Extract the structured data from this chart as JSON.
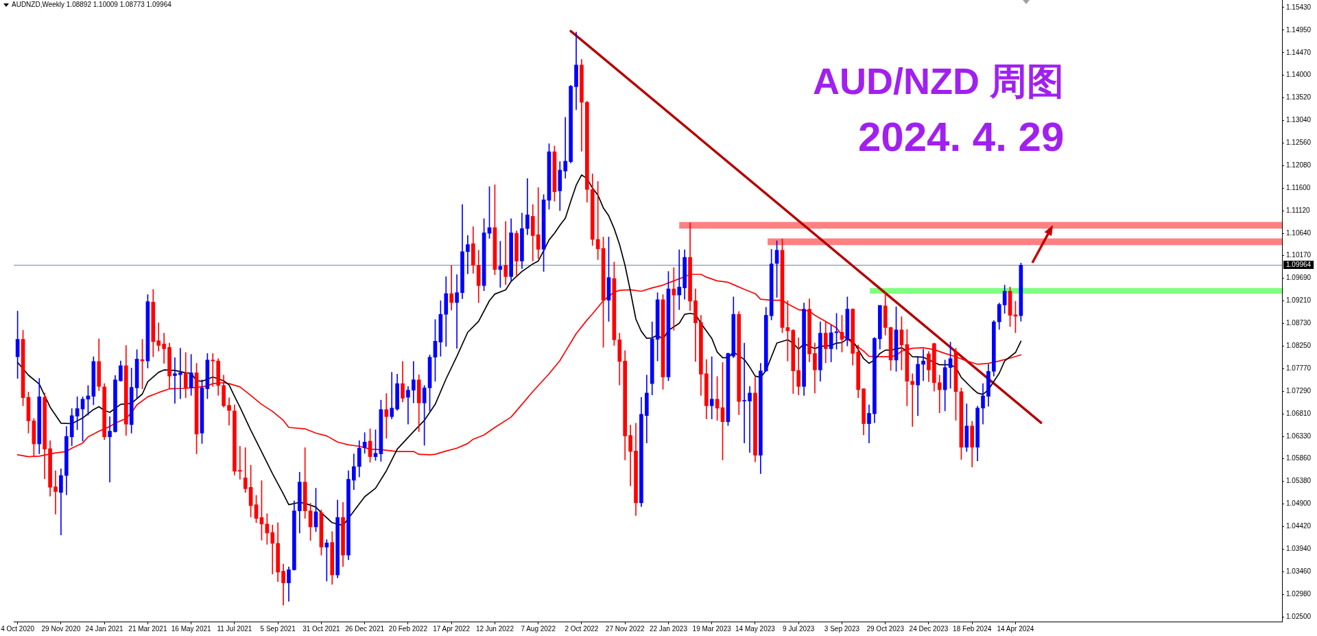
{
  "chart_data": {
    "type": "candlestick",
    "title": "AUD/NZD 周图",
    "subtitle": "2024. 4. 29",
    "annotations": [
      "AUDNZD,Weekly 1.08892 1.10009 1.08773 1.09964"
    ],
    "x": [
      "2020-10-04",
      "2020-10-11",
      "2020-10-18",
      "2020-10-25",
      "2020-11-01",
      "2020-11-08",
      "2020-11-15",
      "2020-11-22",
      "2020-11-29",
      "2020-12-06",
      "2020-12-13",
      "2020-12-20",
      "2020-12-27",
      "2021-01-03",
      "2021-01-10",
      "2021-01-17",
      "2021-01-24",
      "2021-01-31",
      "2021-02-07",
      "2021-02-14",
      "2021-02-21",
      "2021-02-28",
      "2021-03-07",
      "2021-03-14",
      "2021-03-21",
      "2021-03-28",
      "2021-04-04",
      "2021-04-11",
      "2021-04-18",
      "2021-04-25",
      "2021-05-02",
      "2021-05-09",
      "2021-05-16",
      "2021-05-23",
      "2021-05-30",
      "2021-06-06",
      "2021-06-13",
      "2021-06-20",
      "2021-06-27",
      "2021-07-04",
      "2021-07-11",
      "2021-07-18",
      "2021-07-25",
      "2021-08-01",
      "2021-08-08",
      "2021-08-15",
      "2021-08-22",
      "2021-08-29",
      "2021-09-05",
      "2021-09-12",
      "2021-09-19",
      "2021-09-26",
      "2021-10-03",
      "2021-10-10",
      "2021-10-17",
      "2021-10-24",
      "2021-10-31",
      "2021-11-07",
      "2021-11-14",
      "2021-11-21",
      "2021-11-28",
      "2021-12-05",
      "2021-12-12",
      "2021-12-19",
      "2021-12-26",
      "2022-01-02",
      "2022-01-09",
      "2022-01-16",
      "2022-01-23",
      "2022-01-30",
      "2022-02-06",
      "2022-02-13",
      "2022-02-20",
      "2022-02-27",
      "2022-03-06",
      "2022-03-13",
      "2022-03-20",
      "2022-03-27",
      "2022-04-03",
      "2022-04-10",
      "2022-04-17",
      "2022-04-24",
      "2022-05-01",
      "2022-05-08",
      "2022-05-15",
      "2022-05-22",
      "2022-05-29",
      "2022-06-05",
      "2022-06-12",
      "2022-06-19",
      "2022-06-26",
      "2022-07-03",
      "2022-07-10",
      "2022-07-17",
      "2022-07-24",
      "2022-07-31",
      "2022-08-07",
      "2022-08-14",
      "2022-08-21",
      "2022-08-28",
      "2022-09-04",
      "2022-09-11",
      "2022-09-18",
      "2022-09-25",
      "2022-10-02",
      "2022-10-09",
      "2022-10-16",
      "2022-10-23",
      "2022-10-30",
      "2022-11-06",
      "2022-11-13",
      "2022-11-20",
      "2022-11-27",
      "2022-12-04",
      "2022-12-11",
      "2022-12-18",
      "2022-12-25",
      "2023-01-01",
      "2023-01-08",
      "2023-01-15",
      "2023-01-22",
      "2023-01-29",
      "2023-02-05",
      "2023-02-12",
      "2023-02-19",
      "2023-02-26",
      "2023-03-05",
      "2023-03-12",
      "2023-03-19",
      "2023-03-26",
      "2023-04-02",
      "2023-04-09",
      "2023-04-16",
      "2023-04-23",
      "2023-04-30",
      "2023-05-07",
      "2023-05-14",
      "2023-05-21",
      "2023-05-28",
      "2023-06-04",
      "2023-06-11",
      "2023-06-18",
      "2023-06-25",
      "2023-07-02",
      "2023-07-09",
      "2023-07-16",
      "2023-07-23",
      "2023-07-30",
      "2023-08-06",
      "2023-08-13",
      "2023-08-20",
      "2023-08-27",
      "2023-09-03",
      "2023-09-10",
      "2023-09-17",
      "2023-09-24",
      "2023-10-01",
      "2023-10-08",
      "2023-10-15",
      "2023-10-22",
      "2023-10-29",
      "2023-11-05",
      "2023-11-12",
      "2023-11-19",
      "2023-11-26",
      "2023-12-03",
      "2023-12-10",
      "2023-12-17",
      "2023-12-24",
      "2023-12-31",
      "2024-01-07",
      "2024-01-14",
      "2024-01-21",
      "2024-01-28",
      "2024-02-04",
      "2024-02-11",
      "2024-02-18",
      "2024-02-25",
      "2024-03-03",
      "2024-03-10",
      "2024-03-17",
      "2024-03-24",
      "2024-03-31",
      "2024-04-07",
      "2024-04-14",
      "2024-04-21"
    ],
    "ohlc": [
      [
        1.0802,
        1.0899,
        1.0756,
        1.0839
      ],
      [
        1.0839,
        1.0858,
        1.0698,
        1.0715
      ],
      [
        1.0716,
        1.0727,
        1.064,
        1.0666
      ],
      [
        1.0666,
        1.0671,
        1.0591,
        1.0617
      ],
      [
        1.0617,
        1.0756,
        1.0596,
        1.0717
      ],
      [
        1.0716,
        1.0725,
        1.0543,
        1.0606
      ],
      [
        1.0607,
        1.0624,
        1.0506,
        1.0525
      ],
      [
        1.0526,
        1.056,
        1.0468,
        1.0516
      ],
      [
        1.0514,
        1.0564,
        1.0424,
        1.055
      ],
      [
        1.055,
        1.0654,
        1.0509,
        1.0633
      ],
      [
        1.0632,
        1.0692,
        1.0613,
        1.0677
      ],
      [
        1.0676,
        1.0717,
        1.0647,
        1.0692
      ],
      [
        1.0691,
        1.0717,
        1.0623,
        1.0712
      ],
      [
        1.0712,
        1.0741,
        1.0678,
        1.0719
      ],
      [
        1.0718,
        1.0802,
        1.07,
        1.0792
      ],
      [
        1.0792,
        1.084,
        1.073,
        1.0739
      ],
      [
        1.0738,
        1.0745,
        1.0626,
        1.0632
      ],
      [
        1.0632,
        1.0675,
        1.0536,
        1.0644
      ],
      [
        1.0643,
        1.0762,
        1.0642,
        1.0753
      ],
      [
        1.0751,
        1.0793,
        1.075,
        1.0783
      ],
      [
        1.0783,
        1.0826,
        1.0635,
        1.0659
      ],
      [
        1.0658,
        1.0778,
        1.064,
        1.0737
      ],
      [
        1.0736,
        1.0817,
        1.0715,
        1.0797
      ],
      [
        1.0796,
        1.0839,
        1.0734,
        1.0793
      ],
      [
        1.0793,
        1.0934,
        1.0778,
        1.0919
      ],
      [
        1.0918,
        1.0945,
        1.0802,
        1.0834
      ],
      [
        1.0836,
        1.0874,
        1.0814,
        1.0826
      ],
      [
        1.0829,
        1.0852,
        1.0788,
        1.0819
      ],
      [
        1.0822,
        1.0831,
        1.0734,
        1.0761
      ],
      [
        1.0762,
        1.08,
        1.0703,
        1.0766
      ],
      [
        1.0764,
        1.082,
        1.0713,
        1.0768
      ],
      [
        1.0768,
        1.0811,
        1.0715,
        1.0736
      ],
      [
        1.0736,
        1.0807,
        1.072,
        1.0768
      ],
      [
        1.0768,
        1.0788,
        1.0596,
        1.0638
      ],
      [
        1.064,
        1.0753,
        1.0618,
        1.0736
      ],
      [
        1.0734,
        1.0809,
        1.0713,
        1.0795
      ],
      [
        1.0795,
        1.0809,
        1.0739,
        1.0793
      ],
      [
        1.0793,
        1.0798,
        1.072,
        1.0741
      ],
      [
        1.0741,
        1.0763,
        1.0695,
        1.0698
      ],
      [
        1.0699,
        1.0715,
        1.0657,
        1.0688
      ],
      [
        1.0687,
        1.07,
        1.0551,
        1.0559
      ],
      [
        1.0561,
        1.0612,
        1.0542,
        1.0559
      ],
      [
        1.0545,
        1.0609,
        1.0514,
        1.0522
      ],
      [
        1.0525,
        1.0572,
        1.0462,
        1.0486
      ],
      [
        1.0488,
        1.0508,
        1.045,
        1.0459
      ],
      [
        1.0461,
        1.0539,
        1.0413,
        1.0447
      ],
      [
        1.0447,
        1.0469,
        1.0404,
        1.0428
      ],
      [
        1.0429,
        1.0445,
        1.0341,
        1.0406
      ],
      [
        1.0406,
        1.045,
        1.0325,
        1.0345
      ],
      [
        1.0347,
        1.0362,
        1.0275,
        1.0322
      ],
      [
        1.0322,
        1.0356,
        1.0283,
        1.035
      ],
      [
        1.035,
        1.0496,
        1.0349,
        1.0475
      ],
      [
        1.0475,
        1.0557,
        1.0428,
        1.0536
      ],
      [
        1.0536,
        1.0609,
        1.0459,
        1.0475
      ],
      [
        1.0475,
        1.0491,
        1.0412,
        1.0441
      ],
      [
        1.0441,
        1.0523,
        1.0431,
        1.0473
      ],
      [
        1.0471,
        1.0477,
        1.0381,
        1.0398
      ],
      [
        1.0398,
        1.0414,
        1.0326,
        1.0407
      ],
      [
        1.0408,
        1.0431,
        1.0319,
        1.0339
      ],
      [
        1.0339,
        1.0498,
        1.0333,
        1.0461
      ],
      [
        1.0461,
        1.0493,
        1.0357,
        1.0381
      ],
      [
        1.0381,
        1.056,
        1.0371,
        1.0542
      ],
      [
        1.054,
        1.0596,
        1.052,
        1.0569
      ],
      [
        1.0569,
        1.0624,
        1.0547,
        1.0608
      ],
      [
        1.0609,
        1.0641,
        1.0597,
        1.0621
      ],
      [
        1.0623,
        1.0649,
        1.0578,
        1.059
      ],
      [
        1.059,
        1.0647,
        1.0582,
        1.0597
      ],
      [
        1.0596,
        1.071,
        1.058,
        1.069
      ],
      [
        1.069,
        1.0724,
        1.0629,
        1.0675
      ],
      [
        1.0675,
        1.0769,
        1.067,
        1.0693
      ],
      [
        1.0691,
        1.0765,
        1.0688,
        1.0745
      ],
      [
        1.0745,
        1.0792,
        1.0706,
        1.0714
      ],
      [
        1.0716,
        1.0739,
        1.0659,
        1.0731
      ],
      [
        1.0731,
        1.0792,
        1.0704,
        1.0753
      ],
      [
        1.0753,
        1.0764,
        1.0643,
        1.0704
      ],
      [
        1.0704,
        1.0741,
        1.0614,
        1.0736
      ],
      [
        1.0736,
        1.0806,
        1.0687,
        1.0801
      ],
      [
        1.0801,
        1.0881,
        1.075,
        1.0835
      ],
      [
        1.0833,
        1.0921,
        1.0803,
        1.0892
      ],
      [
        1.0892,
        1.0972,
        1.0824,
        1.0936
      ],
      [
        1.0936,
        1.0996,
        1.0901,
        1.0917
      ],
      [
        1.0917,
        1.0976,
        1.082,
        1.0938
      ],
      [
        1.0938,
        1.1125,
        1.0925,
        1.1025
      ],
      [
        1.1025,
        1.1059,
        1.0978,
        1.104
      ],
      [
        1.1042,
        1.1078,
        1.0979,
        1.0996
      ],
      [
        1.0996,
        1.1028,
        1.0917,
        1.0953
      ],
      [
        1.0953,
        1.1095,
        1.0942,
        1.1065
      ],
      [
        1.1064,
        1.1163,
        1.1053,
        1.1076
      ],
      [
        1.1076,
        1.1167,
        1.0976,
        1.0987
      ],
      [
        1.0987,
        1.1047,
        1.0949,
        1.0994
      ],
      [
        1.0996,
        1.1089,
        1.0955,
        1.0972
      ],
      [
        1.0972,
        1.1095,
        1.0962,
        1.1065
      ],
      [
        1.1064,
        1.1069,
        1.0972,
        1.1005
      ],
      [
        1.1005,
        1.1107,
        1.0989,
        1.1074
      ],
      [
        1.1074,
        1.118,
        1.1061,
        1.1103
      ],
      [
        1.11,
        1.1125,
        1.1005,
        1.1059
      ],
      [
        1.1061,
        1.1161,
        1.101,
        1.103
      ],
      [
        1.103,
        1.1146,
        1.0983,
        1.1135
      ],
      [
        1.1134,
        1.1254,
        1.1115,
        1.1237
      ],
      [
        1.1237,
        1.1249,
        1.1132,
        1.1152
      ],
      [
        1.1154,
        1.1216,
        1.1112,
        1.1198
      ],
      [
        1.1196,
        1.131,
        1.1181,
        1.1217
      ],
      [
        1.1216,
        1.1378,
        1.1213,
        1.1376
      ],
      [
        1.1375,
        1.1491,
        1.1326,
        1.1421
      ],
      [
        1.1421,
        1.1433,
        1.1238,
        1.1342
      ],
      [
        1.1342,
        1.1344,
        1.113,
        1.1157
      ],
      [
        1.1157,
        1.119,
        1.1038,
        1.1051
      ],
      [
        1.1051,
        1.1174,
        1.1008,
        1.1031
      ],
      [
        1.1032,
        1.1056,
        1.0822,
        1.0922
      ],
      [
        1.0922,
        1.1056,
        1.0877,
        1.097
      ],
      [
        1.0968,
        1.1003,
        1.0826,
        1.0838
      ],
      [
        1.0838,
        1.0852,
        1.0742,
        1.0792
      ],
      [
        1.0793,
        1.0815,
        1.0583,
        1.0634
      ],
      [
        1.0635,
        1.0657,
        1.0528,
        1.0601
      ],
      [
        1.0602,
        1.0661,
        1.0465,
        1.0492
      ],
      [
        1.0492,
        1.0716,
        1.0484,
        1.068
      ],
      [
        1.0677,
        1.0763,
        1.0619,
        1.0725
      ],
      [
        1.0745,
        1.0876,
        1.0721,
        1.084
      ],
      [
        1.0839,
        1.0938,
        1.0793,
        1.0923
      ],
      [
        1.0923,
        1.0934,
        1.0733,
        1.0759
      ],
      [
        1.0759,
        1.0983,
        1.0751,
        1.0946
      ],
      [
        1.0946,
        1.0991,
        1.0858,
        1.0933
      ],
      [
        1.0933,
        1.1029,
        1.0902,
        1.095
      ],
      [
        1.0948,
        1.1029,
        1.0924,
        1.1013
      ],
      [
        1.1013,
        1.1086,
        1.09,
        1.092
      ],
      [
        1.0921,
        1.0946,
        1.0792,
        1.0874
      ],
      [
        1.0875,
        1.089,
        1.072,
        1.0765
      ],
      [
        1.0766,
        1.0796,
        1.067,
        1.0698
      ],
      [
        1.0698,
        1.0802,
        1.067,
        1.0712
      ],
      [
        1.0712,
        1.076,
        1.0667,
        1.0693
      ],
      [
        1.0694,
        1.079,
        1.0583,
        1.0664
      ],
      [
        1.0664,
        1.081,
        1.0656,
        1.0809
      ],
      [
        1.0803,
        1.0929,
        1.08,
        1.0892
      ],
      [
        1.0892,
        1.0898,
        1.0679,
        1.0707
      ],
      [
        1.0708,
        1.0831,
        1.0619,
        1.0709
      ],
      [
        1.0708,
        1.0739,
        1.0599,
        1.0725
      ],
      [
        1.0725,
        1.0759,
        1.0579,
        1.0593
      ],
      [
        1.0593,
        1.0788,
        1.0554,
        1.0772
      ],
      [
        1.0772,
        1.0907,
        1.0771,
        1.089
      ],
      [
        1.0889,
        1.103,
        1.088,
        1.0999
      ],
      [
        1.1,
        1.1048,
        1.0928,
        1.1028
      ],
      [
        1.1028,
        1.1052,
        1.0853,
        1.0864
      ],
      [
        1.0864,
        1.0921,
        1.0793,
        1.0857
      ],
      [
        1.0858,
        1.086,
        1.0724,
        1.0772
      ],
      [
        1.0773,
        1.0842,
        1.0721,
        1.0739
      ],
      [
        1.0739,
        1.0916,
        1.072,
        1.0903
      ],
      [
        1.0903,
        1.0925,
        1.0791,
        1.0808
      ],
      [
        1.0809,
        1.0831,
        1.0725,
        1.0774
      ],
      [
        1.0774,
        1.0876,
        1.075,
        1.0852
      ],
      [
        1.0852,
        1.0877,
        1.0789,
        1.0819
      ],
      [
        1.0819,
        1.0869,
        1.0791,
        1.0853
      ],
      [
        1.0853,
        1.0894,
        1.0818,
        1.0855
      ],
      [
        1.0854,
        1.089,
        1.0812,
        1.0839
      ],
      [
        1.0839,
        1.0929,
        1.0825,
        1.0903
      ],
      [
        1.0903,
        1.0904,
        1.0784,
        1.0809
      ],
      [
        1.0812,
        1.0827,
        1.0715,
        1.0732
      ],
      [
        1.0734,
        1.0734,
        1.0636,
        1.066
      ],
      [
        1.066,
        1.07,
        1.0619,
        1.0682
      ],
      [
        1.0681,
        1.0843,
        1.0662,
        1.0841
      ],
      [
        1.084,
        1.0911,
        1.0818,
        1.0911
      ],
      [
        1.091,
        1.0938,
        1.0848,
        1.0864
      ],
      [
        1.0864,
        1.0865,
        1.0773,
        1.0795
      ],
      [
        1.0795,
        1.0908,
        1.0771,
        1.0859
      ],
      [
        1.0859,
        1.0887,
        1.0774,
        1.0827
      ],
      [
        1.0828,
        1.086,
        1.0698,
        1.075
      ],
      [
        1.075,
        1.0766,
        1.0654,
        1.0743
      ],
      [
        1.0742,
        1.0803,
        1.0677,
        1.0786
      ],
      [
        1.0786,
        1.0818,
        1.0751,
        1.0793
      ],
      [
        1.0808,
        1.0813,
        1.0749,
        1.0774
      ],
      [
        1.083,
        1.0831,
        1.0729,
        1.0747
      ],
      [
        1.0747,
        1.0763,
        1.0683,
        1.0732
      ],
      [
        1.0732,
        1.0795,
        1.0687,
        1.0779
      ],
      [
        1.0779,
        1.0833,
        1.0735,
        1.0798
      ],
      [
        1.0812,
        1.082,
        1.0667,
        1.0728
      ],
      [
        1.0728,
        1.0736,
        1.0584,
        1.061
      ],
      [
        1.061,
        1.0702,
        1.0601,
        1.0655
      ],
      [
        1.0655,
        1.0665,
        1.0568,
        1.061
      ],
      [
        1.061,
        1.0697,
        1.0581,
        1.0693
      ],
      [
        1.0693,
        1.0745,
        1.0659,
        1.0719
      ],
      [
        1.0718,
        1.0786,
        1.0697,
        1.0771
      ],
      [
        1.0771,
        1.0879,
        1.0761,
        1.0876
      ],
      [
        1.0876,
        1.0916,
        1.086,
        1.0913
      ],
      [
        1.0912,
        1.0954,
        1.0894,
        1.0941
      ],
      [
        1.0941,
        1.095,
        1.0866,
        1.089
      ],
      [
        1.0891,
        1.092,
        1.0853,
        1.0888
      ],
      [
        1.08892,
        1.10009,
        1.08773,
        1.09964
      ]
    ],
    "colors": [
      "#0000ff",
      "#ff0000",
      "#ff0000",
      "#ff0000",
      "#0000ff",
      "#ff0000",
      "#ff0000",
      "#ff0000",
      "#0000ff",
      "#0000ff",
      "#0000ff",
      "#0000ff",
      "#0000ff",
      "#0000ff",
      "#0000ff",
      "#ff0000",
      "#ff0000",
      "#0000ff",
      "#0000ff",
      "#0000ff",
      "#ff0000",
      "#0000ff",
      "#0000ff",
      "#ff0000",
      "#0000ff",
      "#ff0000",
      "#ff0000",
      "#ff0000",
      "#ff0000",
      "#0000ff",
      "#0000ff",
      "#ff0000",
      "#0000ff",
      "#ff0000",
      "#0000ff",
      "#0000ff",
      "#ff0000",
      "#ff0000",
      "#ff0000",
      "#ff0000",
      "#ff0000",
      "#ff0000",
      "#ff0000",
      "#ff0000",
      "#ff0000",
      "#ff0000",
      "#ff0000",
      "#ff0000",
      "#ff0000",
      "#ff0000",
      "#0000ff",
      "#0000ff",
      "#0000ff",
      "#ff0000",
      "#ff0000",
      "#0000ff",
      "#ff0000",
      "#0000ff",
      "#ff0000",
      "#0000ff",
      "#ff0000",
      "#0000ff",
      "#0000ff",
      "#0000ff",
      "#0000ff",
      "#ff0000",
      "#0000ff",
      "#0000ff",
      "#ff0000",
      "#0000ff",
      "#0000ff",
      "#ff0000",
      "#0000ff",
      "#0000ff",
      "#ff0000",
      "#0000ff",
      "#0000ff",
      "#0000ff",
      "#0000ff",
      "#0000ff",
      "#ff0000",
      "#0000ff",
      "#0000ff",
      "#0000ff",
      "#ff0000",
      "#ff0000",
      "#0000ff",
      "#0000ff",
      "#ff0000",
      "#0000ff",
      "#ff0000",
      "#0000ff",
      "#ff0000",
      "#0000ff",
      "#0000ff",
      "#ff0000",
      "#ff0000",
      "#0000ff",
      "#0000ff",
      "#ff0000",
      "#0000ff",
      "#0000ff",
      "#0000ff",
      "#0000ff",
      "#ff0000",
      "#ff0000",
      "#ff0000",
      "#ff0000",
      "#ff0000",
      "#0000ff",
      "#ff0000",
      "#ff0000",
      "#ff0000",
      "#ff0000",
      "#ff0000",
      "#0000ff",
      "#0000ff",
      "#0000ff",
      "#0000ff",
      "#ff0000",
      "#0000ff",
      "#ff0000",
      "#0000ff",
      "#0000ff",
      "#ff0000",
      "#ff0000",
      "#ff0000",
      "#ff0000",
      "#0000ff",
      "#ff0000",
      "#ff0000",
      "#0000ff",
      "#0000ff",
      "#ff0000",
      "#0000ff",
      "#0000ff",
      "#ff0000",
      "#0000ff",
      "#0000ff",
      "#0000ff",
      "#0000ff",
      "#ff0000",
      "#ff0000",
      "#ff0000",
      "#ff0000",
      "#0000ff",
      "#ff0000",
      "#ff0000",
      "#0000ff",
      "#ff0000",
      "#0000ff",
      "#0000ff",
      "#ff0000",
      "#0000ff",
      "#ff0000",
      "#ff0000",
      "#ff0000",
      "#0000ff",
      "#0000ff",
      "#0000ff",
      "#ff0000",
      "#ff0000",
      "#0000ff",
      "#ff0000",
      "#ff0000",
      "#ff0000",
      "#0000ff",
      "#0000ff",
      "#ff0000",
      "#ff0000",
      "#ff0000",
      "#0000ff",
      "#0000ff",
      "#ff0000",
      "#ff0000",
      "#0000ff",
      "#ff0000",
      "#0000ff",
      "#0000ff",
      "#0000ff",
      "#0000ff",
      "#0000ff",
      "#0000ff",
      "#ff0000",
      "#ff0000",
      "#0000ff"
    ],
    "series": [
      {
        "type": "line",
        "color": "#000000",
        "x": [
          "2020-10-04",
          "2020-10-18",
          "2020-11-01",
          "2020-11-15",
          "2020-11-29",
          "2020-12-13",
          "2020-12-27",
          "2021-01-10",
          "2021-01-17",
          "2021-01-24",
          "2021-01-31",
          "2021-02-14",
          "2021-02-28",
          "2021-03-14",
          "2021-03-21",
          "2021-04-04",
          "2021-04-11",
          "2021-04-25",
          "2021-05-09",
          "2021-05-16",
          "2021-05-23",
          "2021-05-30",
          "2021-06-13",
          "2021-06-27",
          "2021-07-04",
          "2021-07-11",
          "2021-07-18",
          "2021-08-01",
          "2021-08-15",
          "2021-08-29",
          "2021-09-12",
          "2021-09-19",
          "2021-10-03",
          "2021-10-10",
          "2021-10-24",
          "2021-10-31",
          "2021-11-14",
          "2021-11-28",
          "2021-12-05",
          "2021-12-26",
          "2022-01-09",
          "2022-01-23",
          "2022-02-06",
          "2022-02-27",
          "2022-03-13",
          "2022-03-27",
          "2022-04-10",
          "2022-04-24",
          "2022-05-08",
          "2022-05-22",
          "2022-06-05",
          "2022-06-12",
          "2022-06-26",
          "2022-07-03",
          "2022-07-17",
          "2022-07-31",
          "2022-08-07",
          "2022-08-14",
          "2022-08-21",
          "2022-08-28",
          "2022-09-04",
          "2022-09-11",
          "2022-09-18",
          "2022-09-25",
          "2022-10-02",
          "2022-10-09",
          "2022-10-16",
          "2022-10-23",
          "2022-10-30",
          "2022-11-06",
          "2022-11-13",
          "2022-11-20",
          "2022-11-27",
          "2022-12-04",
          "2022-12-11",
          "2022-12-18",
          "2022-12-25",
          "2023-01-01",
          "2023-01-08",
          "2023-01-15",
          "2023-01-22",
          "2023-02-05",
          "2023-02-12",
          "2023-02-19",
          "2023-02-26",
          "2023-03-05",
          "2023-03-19",
          "2023-03-26",
          "2023-04-02",
          "2023-04-09",
          "2023-04-16",
          "2023-04-30",
          "2023-05-07",
          "2023-05-14",
          "2023-05-21",
          "2023-05-28",
          "2023-06-04",
          "2023-06-11",
          "2023-06-25",
          "2023-07-02",
          "2023-07-09",
          "2023-07-16",
          "2023-07-23",
          "2023-07-30",
          "2023-08-06",
          "2023-08-20",
          "2023-08-27",
          "2023-09-03",
          "2023-09-10",
          "2023-09-17",
          "2023-09-24",
          "2023-10-01",
          "2023-10-08",
          "2023-10-15",
          "2023-10-22",
          "2023-10-29",
          "2023-11-05",
          "2023-11-19",
          "2023-11-26",
          "2023-12-03",
          "2023-12-17",
          "2024-01-07",
          "2024-01-21",
          "2024-01-28",
          "2024-02-04",
          "2024-02-18",
          "2024-02-25",
          "2024-03-03",
          "2024-03-10",
          "2024-03-24",
          "2024-03-31",
          "2024-04-14",
          "2024-04-21"
        ],
        "values": [
          1.079,
          1.0763,
          1.0744,
          1.0695,
          1.0661,
          1.066,
          1.0672,
          1.069,
          1.0696,
          1.0688,
          1.0684,
          1.0701,
          1.0703,
          1.0723,
          1.0749,
          1.0769,
          1.0774,
          1.0773,
          1.0768,
          1.0767,
          1.0751,
          1.075,
          1.0759,
          1.0751,
          1.0742,
          1.0718,
          1.0695,
          1.0646,
          1.06,
          1.0554,
          1.0511,
          1.0488,
          1.0493,
          1.0491,
          1.0483,
          1.0471,
          1.045,
          1.0444,
          1.0459,
          1.0505,
          1.0523,
          1.056,
          1.0606,
          1.0643,
          1.0667,
          1.0701,
          1.0755,
          1.0803,
          1.0854,
          1.0877,
          1.0921,
          1.0935,
          1.0944,
          1.0962,
          1.0983,
          1.0999,
          1.1005,
          1.1027,
          1.105,
          1.1064,
          1.1081,
          1.1096,
          1.1132,
          1.1166,
          1.1188,
          1.118,
          1.116,
          1.1145,
          1.1118,
          1.1101,
          1.1074,
          1.104,
          1.0996,
          1.0941,
          1.0882,
          1.0856,
          1.0841,
          1.0842,
          1.0848,
          1.0839,
          1.0858,
          1.0873,
          1.0892,
          1.0894,
          1.0892,
          1.0873,
          1.0841,
          1.0812,
          1.08,
          1.08,
          1.0812,
          1.0796,
          1.078,
          1.0761,
          1.0758,
          1.0773,
          1.0802,
          1.0831,
          1.0838,
          1.0831,
          1.0818,
          1.0829,
          1.0825,
          1.0819,
          1.0824,
          1.0826,
          1.0831,
          1.0832,
          1.084,
          1.0836,
          1.0817,
          1.0798,
          1.0788,
          1.0795,
          1.0809,
          1.0816,
          1.0816,
          1.0821,
          1.0814,
          1.0802,
          1.0801,
          1.0785,
          1.0785,
          1.0779,
          1.0758,
          1.0735,
          1.0725,
          1.0722,
          1.0732,
          1.0767,
          1.0793,
          1.0811,
          1.0835
        ]
      },
      {
        "type": "line",
        "color": "#ff0000",
        "x": [
          "2020-10-04",
          "2020-10-18",
          "2020-11-01",
          "2020-11-22",
          "2020-12-06",
          "2020-12-13",
          "2020-12-27",
          "2021-01-03",
          "2021-01-17",
          "2021-01-31",
          "2021-02-07",
          "2021-02-21",
          "2021-02-28",
          "2021-03-07",
          "2021-03-21",
          "2021-04-04",
          "2021-04-18",
          "2021-05-09",
          "2021-05-23",
          "2021-06-06",
          "2021-06-13",
          "2021-06-27",
          "2021-07-04",
          "2021-07-18",
          "2021-08-01",
          "2021-08-15",
          "2021-08-29",
          "2021-09-12",
          "2021-09-19",
          "2021-10-10",
          "2021-10-24",
          "2021-11-07",
          "2021-11-21",
          "2021-12-05",
          "2021-12-19",
          "2022-01-02",
          "2022-01-16",
          "2022-02-06",
          "2022-02-27",
          "2022-03-06",
          "2022-03-20",
          "2022-03-27",
          "2022-04-10",
          "2022-04-24",
          "2022-05-08",
          "2022-05-15",
          "2022-05-29",
          "2022-06-12",
          "2022-07-03",
          "2022-07-17",
          "2022-07-31",
          "2022-08-21",
          "2022-09-04",
          "2022-09-11",
          "2022-09-25",
          "2022-10-09",
          "2022-10-16",
          "2022-10-30",
          "2022-11-13",
          "2022-11-20",
          "2022-12-04",
          "2022-12-18",
          "2023-01-01",
          "2023-01-15",
          "2023-01-29",
          "2023-02-12",
          "2023-02-19",
          "2023-03-05",
          "2023-03-12",
          "2023-03-26",
          "2023-04-09",
          "2023-04-16",
          "2023-04-30",
          "2023-05-14",
          "2023-05-21",
          "2023-06-04",
          "2023-06-18",
          "2023-06-25",
          "2023-07-09",
          "2023-07-23",
          "2023-07-30",
          "2023-08-13",
          "2023-08-27",
          "2023-09-03",
          "2023-09-17",
          "2023-10-01",
          "2023-10-08",
          "2023-10-22",
          "2023-11-05",
          "2023-11-12",
          "2023-11-19",
          "2023-12-03",
          "2023-12-17",
          "2023-12-31",
          "2024-01-14",
          "2024-01-28",
          "2024-02-11",
          "2024-02-25",
          "2024-03-10",
          "2024-03-24",
          "2024-04-07",
          "2024-04-21"
        ],
        "values": [
          1.0594,
          1.059,
          1.0591,
          1.0598,
          1.0601,
          1.0608,
          1.0619,
          1.0632,
          1.0644,
          1.0654,
          1.0661,
          1.0671,
          1.0683,
          1.07,
          1.0717,
          1.0726,
          1.0734,
          1.0735,
          1.0737,
          1.074,
          1.0745,
          1.0747,
          1.0745,
          1.0738,
          1.072,
          1.0701,
          1.0686,
          1.0667,
          1.0652,
          1.0649,
          1.064,
          1.0634,
          1.0621,
          1.0615,
          1.0612,
          1.0606,
          1.0605,
          1.0601,
          1.0601,
          1.0595,
          1.0594,
          1.0595,
          1.0602,
          1.0608,
          1.0618,
          1.0627,
          1.0636,
          1.0652,
          1.0674,
          1.0701,
          1.0728,
          1.0766,
          1.0794,
          1.0813,
          1.0851,
          1.088,
          1.0893,
          1.0921,
          1.0939,
          1.0943,
          1.0944,
          1.0941,
          1.0948,
          1.0954,
          1.0963,
          1.0972,
          1.0977,
          1.0977,
          1.0971,
          1.0963,
          1.096,
          1.0955,
          1.0945,
          1.0936,
          1.0924,
          1.0922,
          1.0922,
          1.0914,
          1.0902,
          1.0899,
          1.089,
          1.0877,
          1.0863,
          1.0848,
          1.0831,
          1.0814,
          1.0803,
          1.0802,
          1.0802,
          1.0805,
          1.0814,
          1.082,
          1.0821,
          1.0817,
          1.0809,
          1.0802,
          1.0793,
          1.0786,
          1.0788,
          1.0793,
          1.0799,
          1.0806
        ]
      },
      {
        "type": "line",
        "color": "#b40000",
        "x": [
          "2022-09-18",
          "2024-05-17"
        ],
        "values": [
          1.1493,
          1.0662
        ]
      },
      {
        "type": "line",
        "color": "#ff8080",
        "x": [
          "2023-02-05",
          "2025-03-24"
        ],
        "values": [
          null,
          null
        ],
        "lower": [
          1.1074,
          1.1074
        ],
        "upper": [
          1.1088,
          1.1088
        ]
      },
      {
        "type": "line",
        "color": "#ff8080",
        "x": [
          "2023-05-30",
          "2025-03-24"
        ],
        "values": [
          null,
          null
        ],
        "lower": [
          1.1039,
          1.1039
        ],
        "upper": [
          1.1053,
          1.1053
        ]
      },
      {
        "type": "line",
        "color": "#80ff80",
        "x": [
          "2023-10-09",
          "2025-03-24"
        ],
        "values": [
          null,
          null
        ],
        "lower": [
          1.0936,
          1.0936
        ],
        "upper": [
          1.0948,
          1.0948
        ]
      }
    ],
    "xlim": [
      "2020-09-29",
      "2025-03-24"
    ],
    "xticks": [
      {
        "value": "2020-10-04",
        "label": "4 Oct 2020"
      },
      {
        "value": "2020-11-29",
        "label": "29 Nov 2020"
      },
      {
        "value": "2021-01-24",
        "label": "24 Jan 2021"
      },
      {
        "value": "2021-03-21",
        "label": "21 Mar 2021"
      },
      {
        "value": "2021-05-16",
        "label": "16 May 2021"
      },
      {
        "value": "2021-07-11",
        "label": "11 Jul 2021"
      },
      {
        "value": "2021-09-05",
        "label": "5 Sep 2021"
      },
      {
        "value": "2021-10-31",
        "label": "31 Oct 2021"
      },
      {
        "value": "2021-12-26",
        "label": "26 Dec 2021"
      },
      {
        "value": "2022-02-20",
        "label": "20 Feb 2022"
      },
      {
        "value": "2022-04-17",
        "label": "17 Apr 2022"
      },
      {
        "value": "2022-06-12",
        "label": "12 Jun 2022"
      },
      {
        "value": "2022-08-07",
        "label": "7 Aug 2022"
      },
      {
        "value": "2022-10-02",
        "label": "2 Oct 2022"
      },
      {
        "value": "2022-11-27",
        "label": "27 Nov 2022"
      },
      {
        "value": "2023-01-22",
        "label": "22 Jan 2023"
      },
      {
        "value": "2023-03-19",
        "label": "19 Mar 2023"
      },
      {
        "value": "2023-05-14",
        "label": "14 May 2023"
      },
      {
        "value": "2023-07-09",
        "label": "9 Jul 2023"
      },
      {
        "value": "2023-09-03",
        "label": "3 Sep 2023"
      },
      {
        "value": "2023-10-29",
        "label": "29 Oct 2023"
      },
      {
        "value": "2023-12-24",
        "label": "24 Dec 2023"
      },
      {
        "value": "2024-02-18",
        "label": "18 Feb 2024"
      },
      {
        "value": "2024-04-14",
        "label": "14 Apr 2024"
      }
    ],
    "ylim": [
      1.024,
      1.1559
    ],
    "yticks": [
      {
        "value": 1.1543,
        "label": "1.15430"
      },
      {
        "value": 1.1495,
        "label": "1.14950"
      },
      {
        "value": 1.1447,
        "label": "1.14470"
      },
      {
        "value": 1.14,
        "label": "1.14000"
      },
      {
        "value": 1.1352,
        "label": "1.13520"
      },
      {
        "value": 1.1304,
        "label": "1.13040"
      },
      {
        "value": 1.1256,
        "label": "1.12560"
      },
      {
        "value": 1.1208,
        "label": "1.12080"
      },
      {
        "value": 1.116,
        "label": "1.11600"
      },
      {
        "value": 1.1112,
        "label": "1.11120"
      },
      {
        "value": 1.1064,
        "label": "1.10640"
      },
      {
        "value": 1.1017,
        "label": "1.10170"
      },
      {
        "value": 1.0969,
        "label": "1.09690"
      },
      {
        "value": 1.0921,
        "label": "1.09210"
      },
      {
        "value": 1.0873,
        "label": "1.08730"
      },
      {
        "value": 1.0825,
        "label": "1.08250"
      },
      {
        "value": 1.0777,
        "label": "1.07770"
      },
      {
        "value": 1.0729,
        "label": "1.07290"
      },
      {
        "value": 1.0681,
        "label": "1.06810"
      },
      {
        "value": 1.0633,
        "label": "1.06330"
      },
      {
        "value": 1.0586,
        "label": "1.05860"
      },
      {
        "value": 1.0538,
        "label": "1.05380"
      },
      {
        "value": 1.049,
        "label": "1.04900"
      },
      {
        "value": 1.0442,
        "label": "1.04420"
      },
      {
        "value": 1.0394,
        "label": "1.03940"
      },
      {
        "value": 1.0346,
        "label": "1.03460"
      },
      {
        "value": 1.0298,
        "label": "1.02980"
      },
      {
        "value": 1.025,
        "label": "1.02500"
      }
    ],
    "ref_lines": [
      {
        "axis": "y",
        "value": 1.09964,
        "label": "1.09964",
        "color": "#778899"
      }
    ],
    "grid": false,
    "legend": false,
    "marker": "none"
  }
}
